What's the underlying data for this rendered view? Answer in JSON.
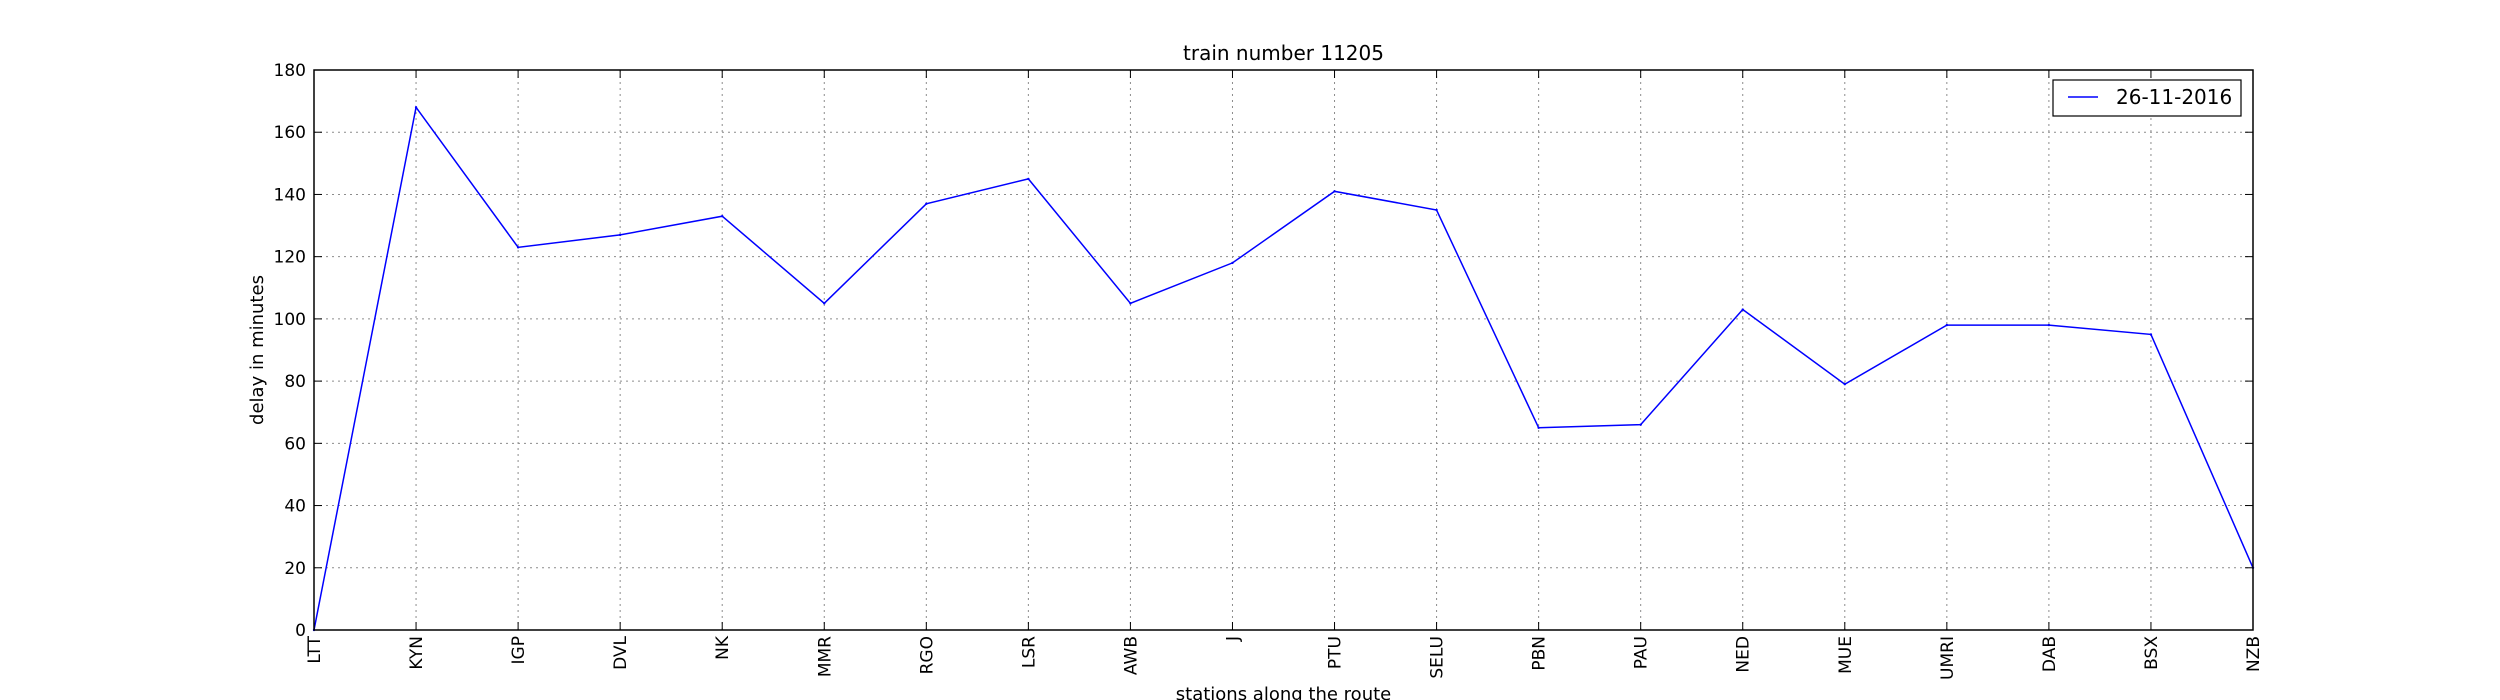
{
  "chart_data": {
    "type": "line",
    "title": "train number 11205",
    "xlabel": "stations along the route",
    "ylabel": "delay in minutes",
    "categories": [
      "LTT",
      "KYN",
      "IGP",
      "DVL",
      "NK",
      "MMR",
      "RGO",
      "LSR",
      "AWB",
      "J",
      "PTU",
      "SELU",
      "PBN",
      "PAU",
      "NED",
      "MUE",
      "UMRI",
      "DAB",
      "BSX",
      "NZB"
    ],
    "series": [
      {
        "name": "26-11-2016",
        "color": "#0000ff",
        "values": [
          0,
          168,
          123,
          127,
          133,
          105,
          137,
          145,
          105,
          118,
          141,
          135,
          65,
          66,
          103,
          79,
          98,
          98,
          95,
          20
        ]
      }
    ],
    "ylim": [
      0,
      180
    ],
    "yticks": [
      0,
      20,
      40,
      60,
      80,
      100,
      120,
      140,
      160,
      180
    ],
    "grid": true,
    "legend_position": "top-right"
  }
}
